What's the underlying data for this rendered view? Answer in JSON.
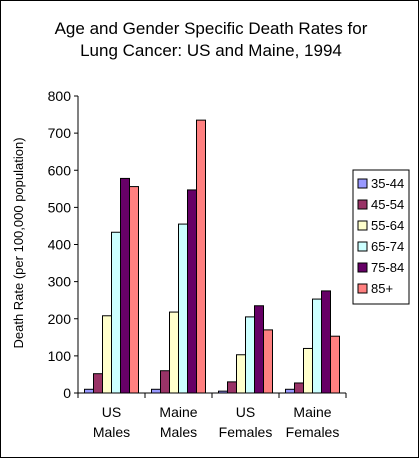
{
  "chart_data": {
    "type": "bar",
    "title_lines": [
      "Age and Gender Specific Death Rates for",
      "Lung Cancer: US and Maine, 1994"
    ],
    "ylabel": "Death Rate (per 100,000 population)",
    "xlabel": "",
    "ylim": [
      0,
      800
    ],
    "yticks": [
      0,
      100,
      200,
      300,
      400,
      500,
      600,
      700,
      800
    ],
    "grid": false,
    "legend_position": "right",
    "categories": [
      [
        "US",
        "Males"
      ],
      [
        "Maine",
        "Males"
      ],
      [
        "US",
        "Females"
      ],
      [
        "Maine",
        "Females"
      ]
    ],
    "series": [
      {
        "name": "35-44",
        "color": "#9999ff",
        "values": [
          10,
          10,
          5,
          10
        ]
      },
      {
        "name": "45-54",
        "color": "#993366",
        "values": [
          52,
          60,
          30,
          27
        ]
      },
      {
        "name": "55-64",
        "color": "#ffffcc",
        "values": [
          208,
          218,
          103,
          120
        ]
      },
      {
        "name": "65-74",
        "color": "#ccffff",
        "values": [
          433,
          455,
          205,
          253
        ]
      },
      {
        "name": "75-84",
        "color": "#660066",
        "values": [
          578,
          547,
          235,
          275
        ]
      },
      {
        "name": "85+",
        "color": "#ff8080",
        "values": [
          556,
          735,
          170,
          153
        ]
      }
    ]
  }
}
